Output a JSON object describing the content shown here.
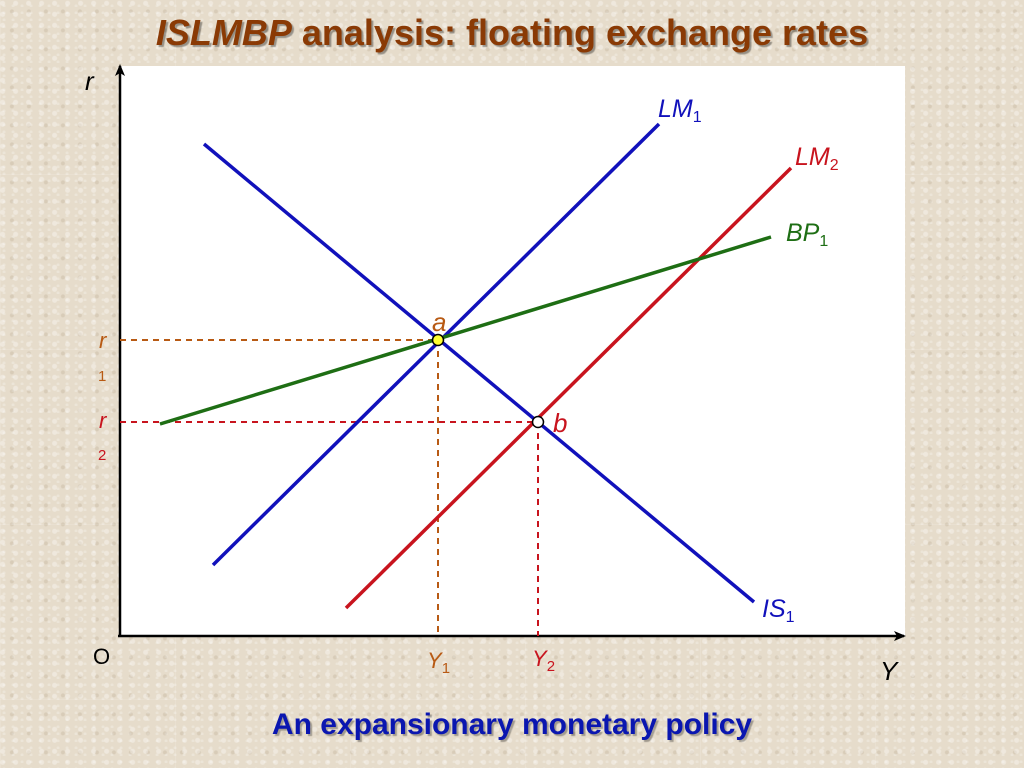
{
  "title": {
    "italic_part": "ISLMBP",
    "rest": " analysis: floating exchange rates"
  },
  "caption": "An expansionary monetary policy",
  "axes": {
    "y_label": "r",
    "x_label": "Y",
    "origin_label": "O"
  },
  "curves": [
    {
      "id": "LM1",
      "label_main": "LM",
      "label_sub": "1",
      "color": "#1111bb"
    },
    {
      "id": "LM2",
      "label_main": "LM",
      "label_sub": "2",
      "color": "#c8141e"
    },
    {
      "id": "BP1",
      "label_main": "BP",
      "label_sub": "1",
      "color": "#1e6e14"
    },
    {
      "id": "IS1",
      "label_main": "IS",
      "label_sub": "1",
      "color": "#1111bb"
    }
  ],
  "points": [
    {
      "id": "a",
      "label": "a",
      "color": "#b85a14",
      "fill": "#ffff33"
    },
    {
      "id": "b",
      "label": "b",
      "color": "#c8141e",
      "fill": "#ffffff"
    }
  ],
  "levels": {
    "r1": {
      "main": "r",
      "sub": "1",
      "color": "#b85a14"
    },
    "r2": {
      "main": "r",
      "sub": "2",
      "color": "#c8141e"
    },
    "Y1": {
      "main": "Y",
      "sub": "1",
      "color": "#b85a14"
    },
    "Y2": {
      "main": "Y",
      "sub": "2",
      "color": "#c8141e"
    }
  }
}
